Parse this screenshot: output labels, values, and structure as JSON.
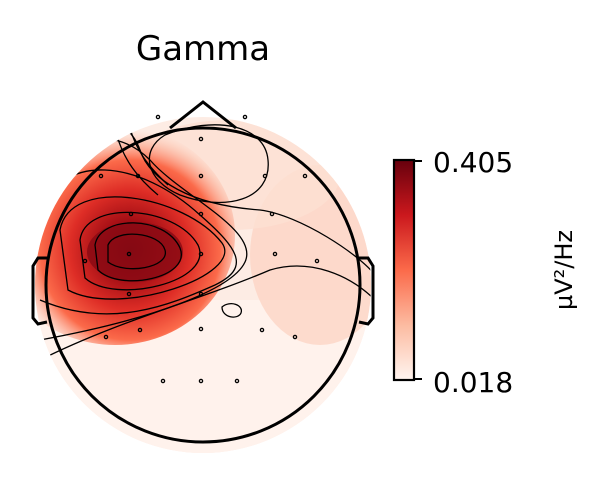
{
  "chart_data": {
    "type": "heatmap",
    "subtype": "eeg-topomap",
    "title": "Gamma",
    "colorbar": {
      "label": "µV²/Hz",
      "max_label": "0.405",
      "min_label": "0.018",
      "vmin": 0.018,
      "vmax": 0.405,
      "colormap": "Reds"
    },
    "colors": {
      "low": "#fff5f0",
      "mid": "#fb6a4a",
      "high": "#67000d",
      "outline": "#000000"
    },
    "peak": {
      "location": "left-frontal",
      "value_approx": 0.405
    },
    "secondary_minimum": {
      "location": "central-midline"
    },
    "contour_count": 8,
    "sensors_shown": true
  }
}
